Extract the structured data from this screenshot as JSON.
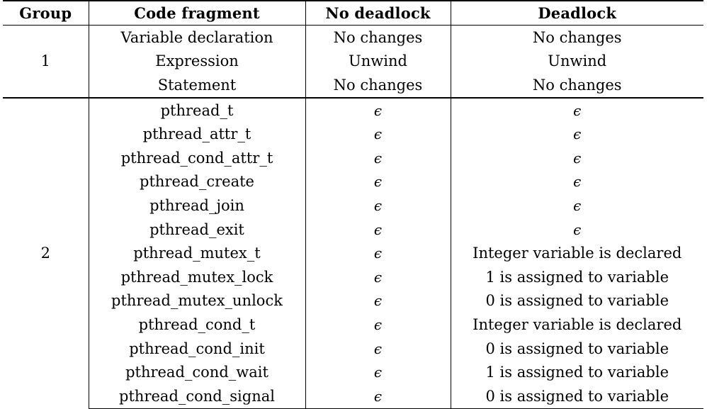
{
  "headers": [
    "Group",
    "Code fragment",
    "No deadlock",
    "Deadlock"
  ],
  "groups": [
    {
      "group": "1",
      "rows": [
        {
          "fragment": "Variable declaration",
          "no_deadlock": "No changes",
          "deadlock": "No changes"
        },
        {
          "fragment": "Expression",
          "no_deadlock": "Unwind",
          "deadlock": "Unwind"
        },
        {
          "fragment": "Statement",
          "no_deadlock": "No changes",
          "deadlock": "No changes"
        }
      ]
    },
    {
      "group": "2",
      "rows": [
        {
          "fragment": "pthread_t",
          "no_deadlock": "ϵ",
          "deadlock": "ϵ"
        },
        {
          "fragment": "pthread_attr_t",
          "no_deadlock": "ϵ",
          "deadlock": "ϵ"
        },
        {
          "fragment": "pthread_cond_attr_t",
          "no_deadlock": "ϵ",
          "deadlock": "ϵ"
        },
        {
          "fragment": "pthread_create",
          "no_deadlock": "ϵ",
          "deadlock": "ϵ"
        },
        {
          "fragment": "pthread_join",
          "no_deadlock": "ϵ",
          "deadlock": "ϵ"
        },
        {
          "fragment": "pthread_exit",
          "no_deadlock": "ϵ",
          "deadlock": "ϵ"
        },
        {
          "fragment": "pthread_mutex_t",
          "no_deadlock": "ϵ",
          "deadlock": "Integer variable is declared"
        },
        {
          "fragment": "pthread_mutex_lock",
          "no_deadlock": "ϵ",
          "deadlock": "1 is assigned to variable"
        },
        {
          "fragment": "pthread_mutex_unlock",
          "no_deadlock": "ϵ",
          "deadlock": "0 is assigned to variable"
        },
        {
          "fragment": "pthread_cond_t",
          "no_deadlock": "ϵ",
          "deadlock": "Integer variable is declared"
        },
        {
          "fragment": "pthread_cond_init",
          "no_deadlock": "ϵ",
          "deadlock": "0 is assigned to variable"
        },
        {
          "fragment": "pthread_cond_wait",
          "no_deadlock": "ϵ",
          "deadlock": "1 is assigned to variable"
        },
        {
          "fragment": "pthread_cond_signal",
          "no_deadlock": "ϵ",
          "deadlock": "0 is assigned to variable"
        }
      ]
    }
  ]
}
